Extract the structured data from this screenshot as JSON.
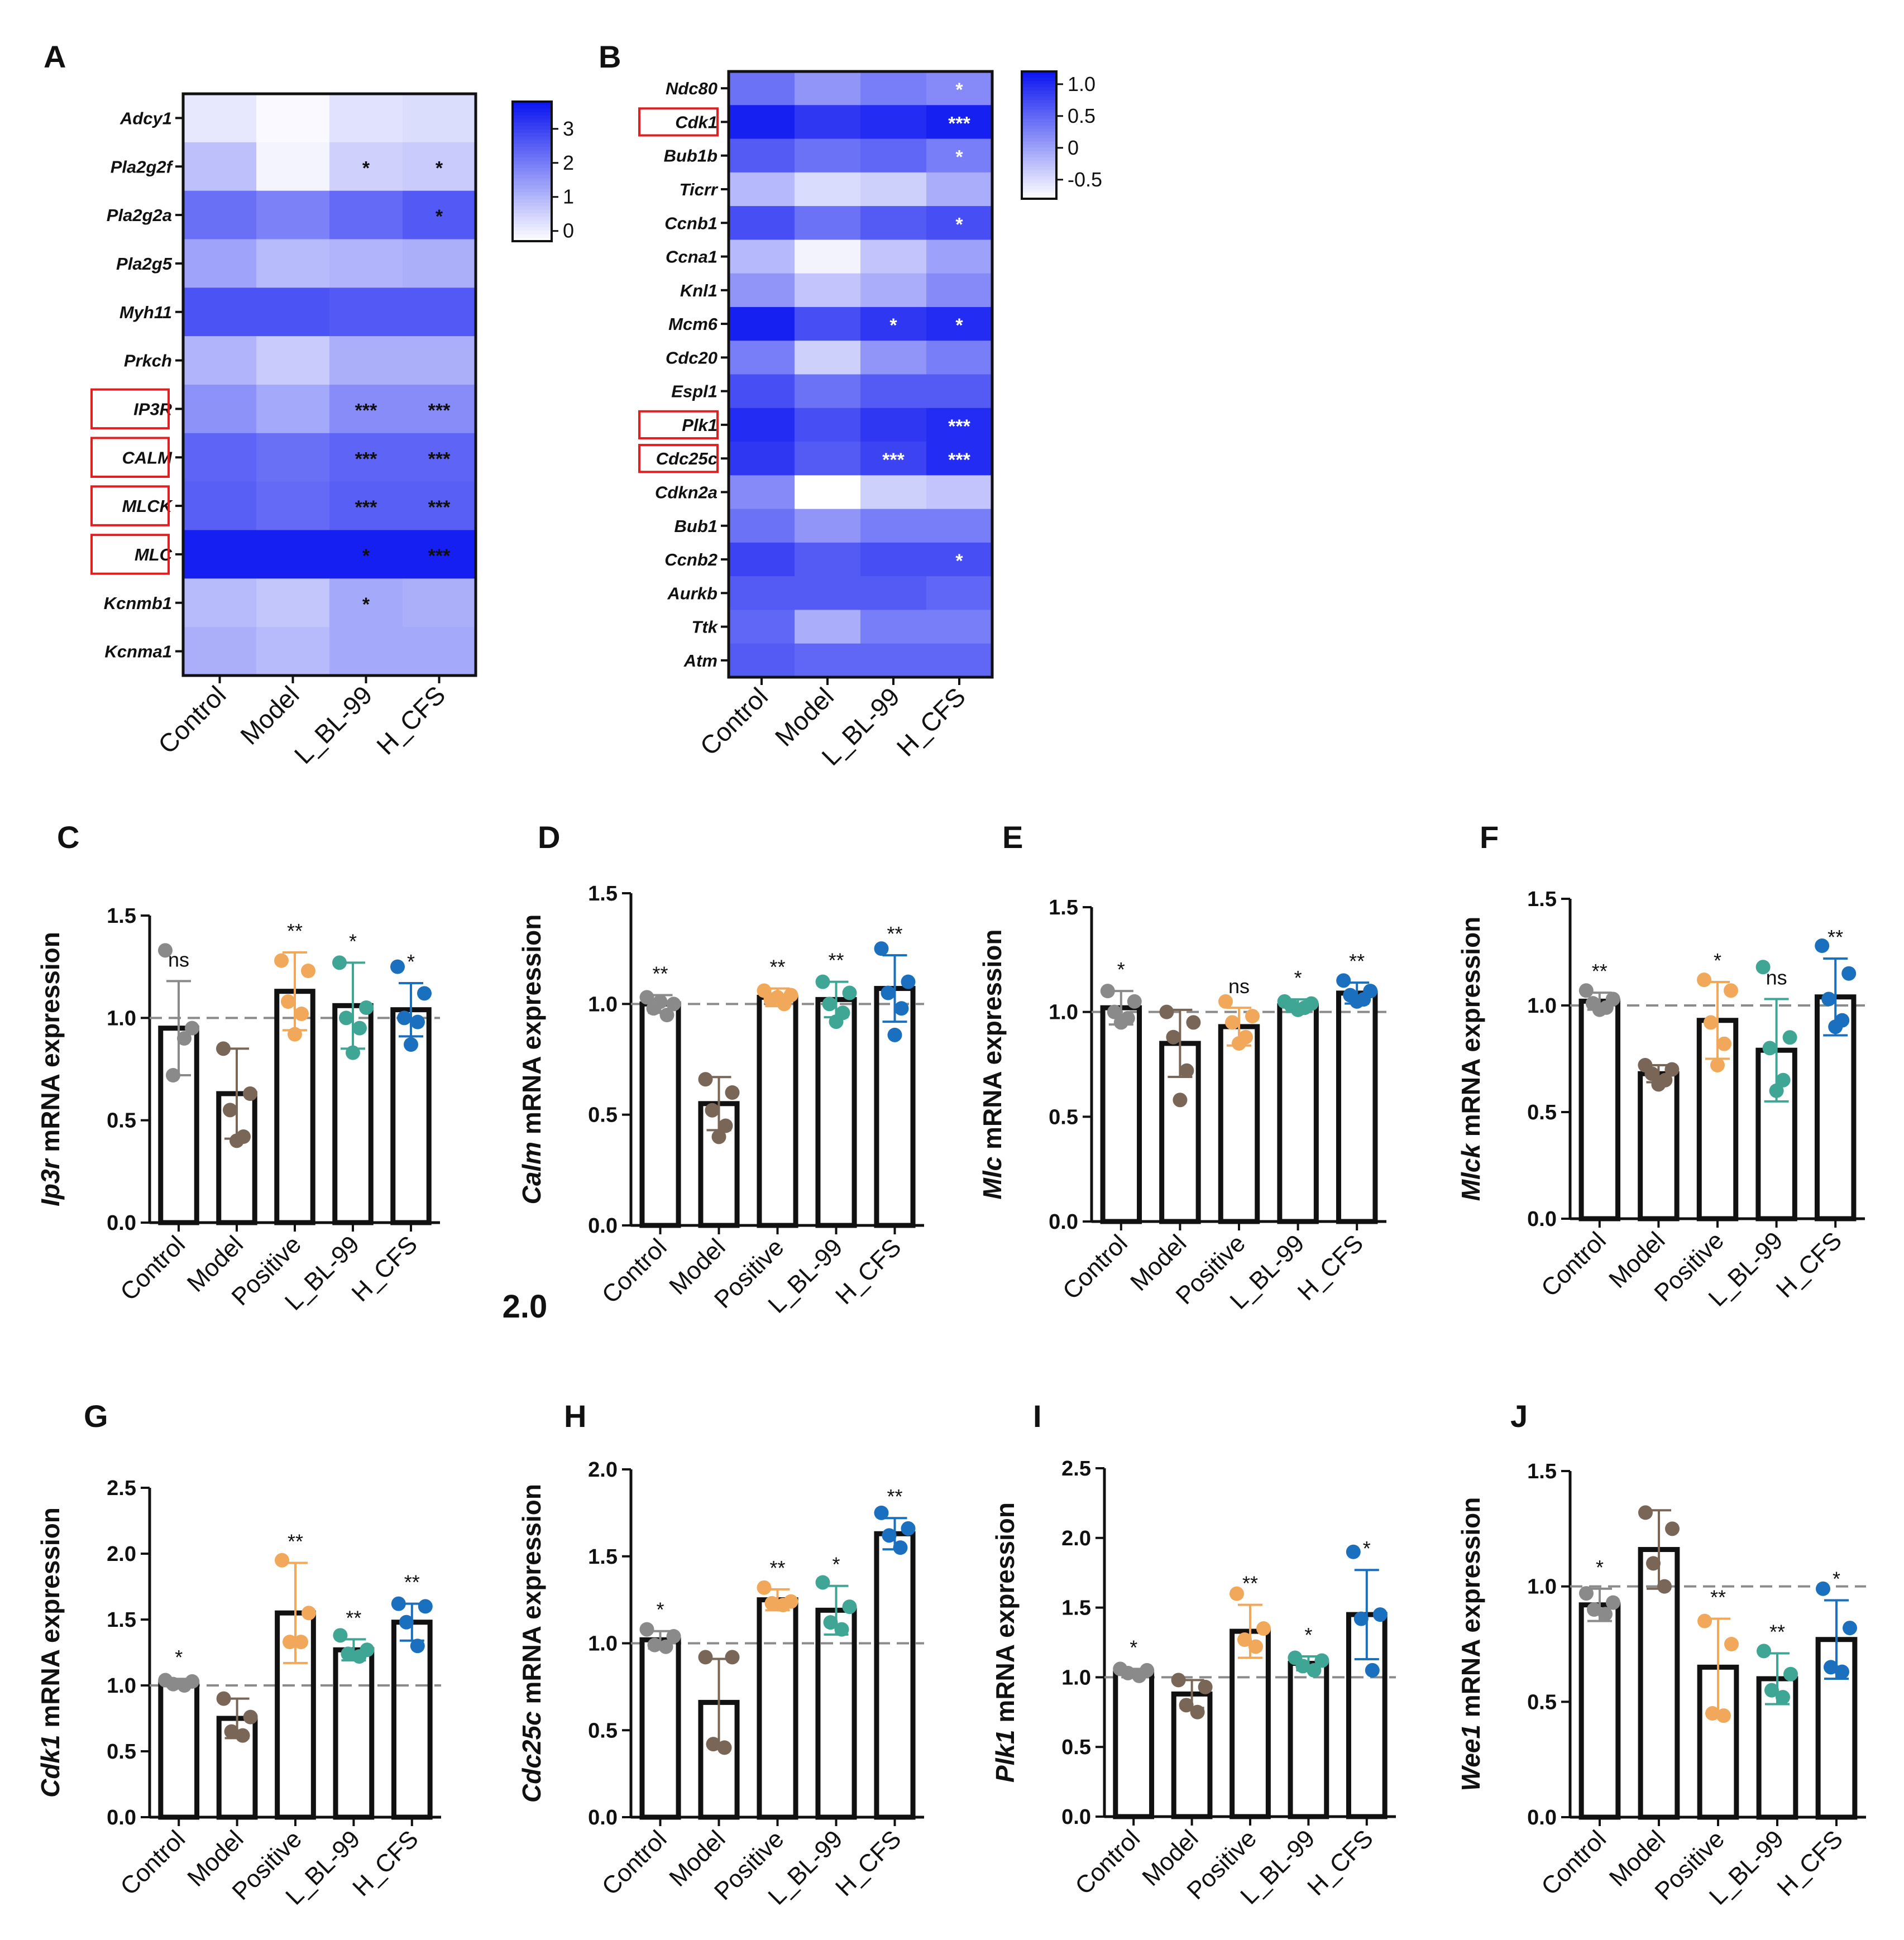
{
  "figure": {
    "stray_text": "2.0",
    "colors": {
      "Control": "#8a8a8a",
      "Model": "#7a6656",
      "Positive": "#f2a85a",
      "L_BL-99": "#3fa594",
      "H_CFS": "#1a6fbe",
      "highlight": "#e02020",
      "heat_max": "#0a14f0"
    }
  },
  "chart_data": [
    {
      "panel": "A",
      "type": "heatmap",
      "columns": [
        "Control",
        "Model",
        "L_BL-99",
        "H_CFS"
      ],
      "rows": [
        "Adcy1",
        "Pla2g2f",
        "Pla2g2a",
        "Pla2g5",
        "Myh11",
        "Prkch",
        "IP3R",
        "CALM",
        "MLCK",
        "MLC",
        "Kcnmb1",
        "Kcnma1"
      ],
      "highlighted_rows": [
        "IP3R",
        "CALM",
        "MLCK",
        "MLC"
      ],
      "values": [
        [
          0.1,
          -0.2,
          0.2,
          0.3
        ],
        [
          0.8,
          -0.1,
          0.5,
          0.6
        ],
        [
          2.2,
          1.9,
          2.3,
          2.6
        ],
        [
          1.3,
          0.9,
          1.0,
          1.1
        ],
        [
          2.7,
          2.7,
          2.6,
          2.6
        ],
        [
          1.0,
          0.6,
          1.1,
          1.1
        ],
        [
          1.6,
          1.2,
          1.7,
          1.7
        ],
        [
          2.4,
          2.2,
          2.4,
          2.4
        ],
        [
          2.5,
          2.3,
          2.5,
          2.5
        ],
        [
          3.6,
          3.6,
          3.6,
          3.6
        ],
        [
          0.9,
          0.7,
          1.2,
          1.1
        ],
        [
          1.1,
          0.9,
          1.2,
          1.2
        ]
      ],
      "stars": [
        [
          "",
          "",
          "",
          ""
        ],
        [
          "",
          "",
          "*",
          "*"
        ],
        [
          "",
          "",
          "",
          "*"
        ],
        [
          "",
          "",
          "",
          ""
        ],
        [
          "",
          "",
          "",
          ""
        ],
        [
          "",
          "",
          "",
          ""
        ],
        [
          "",
          "",
          "***",
          "***"
        ],
        [
          "",
          "",
          "***",
          "***"
        ],
        [
          "",
          "",
          "***",
          "***"
        ],
        [
          "",
          "",
          "*",
          "***"
        ],
        [
          "",
          "",
          "*",
          ""
        ],
        [
          "",
          "",
          "",
          ""
        ]
      ],
      "star_color": "#111111",
      "vmin": -0.3,
      "vmax": 3.8,
      "colorbar_ticks": [
        "3",
        "2",
        "1",
        "0"
      ],
      "colorbar_tick_values": [
        3,
        2,
        1,
        0
      ]
    },
    {
      "panel": "B",
      "type": "heatmap",
      "columns": [
        "Control",
        "Model",
        "L_BL-99",
        "H_CFS"
      ],
      "rows": [
        "Ndc80",
        "Cdk1",
        "Bub1b",
        "Ticrr",
        "Ccnb1",
        "Ccna1",
        "Knl1",
        "Mcm6",
        "Cdc20",
        "Espl1",
        "Plk1",
        "Cdc25c",
        "Cdkn2a",
        "Bub1",
        "Ccnb2",
        "Aurkb",
        "Ttk",
        "Atm"
      ],
      "highlighted_rows": [
        "Cdk1",
        "Plk1",
        "Cdc25c"
      ],
      "values": [
        [
          0.4,
          0.1,
          0.3,
          0.2
        ],
        [
          1.1,
          0.9,
          1.0,
          1.1
        ],
        [
          0.6,
          0.4,
          0.5,
          0.3
        ],
        [
          -0.2,
          -0.5,
          -0.4,
          -0.1
        ],
        [
          0.7,
          0.4,
          0.6,
          0.7
        ],
        [
          -0.2,
          -0.7,
          -0.3,
          0.0
        ],
        [
          0.1,
          -0.3,
          -0.1,
          0.2
        ],
        [
          1.1,
          0.7,
          0.9,
          1.0
        ],
        [
          0.3,
          -0.4,
          0.1,
          0.3
        ],
        [
          0.7,
          0.4,
          0.6,
          0.6
        ],
        [
          1.0,
          0.7,
          0.9,
          1.0
        ],
        [
          0.9,
          0.6,
          0.8,
          1.0
        ],
        [
          0.2,
          -0.9,
          -0.4,
          -0.3
        ],
        [
          0.4,
          0.1,
          0.3,
          0.3
        ],
        [
          0.8,
          0.6,
          0.7,
          0.7
        ],
        [
          0.6,
          0.6,
          0.6,
          0.5
        ],
        [
          0.5,
          -0.1,
          0.3,
          0.3
        ],
        [
          0.6,
          0.5,
          0.5,
          0.5
        ]
      ],
      "stars": [
        [
          "",
          "",
          "",
          "*"
        ],
        [
          "",
          "",
          "",
          "***"
        ],
        [
          "",
          "",
          "",
          "*"
        ],
        [
          "",
          "",
          "",
          ""
        ],
        [
          "",
          "",
          "",
          "*"
        ],
        [
          "",
          "",
          "",
          ""
        ],
        [
          "",
          "",
          "",
          ""
        ],
        [
          "",
          "",
          "*",
          "*"
        ],
        [
          "",
          "",
          "",
          ""
        ],
        [
          "",
          "",
          "",
          ""
        ],
        [
          "",
          "",
          "",
          "***"
        ],
        [
          "",
          "",
          "***",
          "***"
        ],
        [
          "",
          "",
          "",
          ""
        ],
        [
          "",
          "",
          "",
          ""
        ],
        [
          "",
          "",
          "",
          "*"
        ],
        [
          "",
          "",
          "",
          ""
        ],
        [
          "",
          "",
          "",
          ""
        ],
        [
          "",
          "",
          "",
          ""
        ]
      ],
      "star_color": "#ffffff",
      "vmin": -0.8,
      "vmax": 1.2,
      "colorbar_ticks": [
        "1.0",
        "0.5",
        "0",
        "-0.5"
      ],
      "colorbar_tick_values": [
        1.0,
        0.5,
        0,
        -0.5
      ]
    },
    {
      "panel": "C",
      "type": "bar",
      "gene": "Ip3r",
      "ylabel": " mRNA expression",
      "categories": [
        "Control",
        "Model",
        "Positive",
        "L_BL-99",
        "H_CFS"
      ],
      "ylim": [
        0,
        1.5
      ],
      "yticks": [
        "0.0",
        "0.5",
        "1.0",
        "1.5"
      ],
      "ytick_values": [
        0,
        0.5,
        1.0,
        1.5
      ],
      "values": [
        0.95,
        0.63,
        1.13,
        1.06,
        1.04
      ],
      "sd": [
        0.23,
        0.22,
        0.19,
        0.21,
        0.13
      ],
      "points": [
        [
          1.33,
          0.95,
          0.72,
          0.9
        ],
        [
          0.85,
          0.63,
          0.55,
          0.42,
          0.4
        ],
        [
          1.28,
          1.23,
          1.08,
          1.02,
          0.92
        ],
        [
          1.27,
          1.05,
          1.0,
          0.95,
          0.83
        ],
        [
          1.25,
          1.12,
          1.0,
          0.98,
          0.87
        ]
      ],
      "sig": [
        "ns",
        "",
        "**",
        "*",
        "*"
      ]
    },
    {
      "panel": "D",
      "type": "bar",
      "gene": "Calm",
      "ylabel": " mRNA expression",
      "categories": [
        "Control",
        "Model",
        "Positive",
        "L_BL-99",
        "H_CFS"
      ],
      "ylim": [
        0,
        1.5
      ],
      "yticks": [
        "0.0",
        "0.5",
        "1.0",
        "1.5"
      ],
      "ytick_values": [
        0,
        0.5,
        1.0,
        1.5
      ],
      "values": [
        1.0,
        0.55,
        1.03,
        1.02,
        1.07
      ],
      "sd": [
        0.04,
        0.12,
        0.04,
        0.08,
        0.15
      ],
      "points": [
        [
          1.03,
          1.0,
          0.98,
          0.95,
          1.01
        ],
        [
          0.66,
          0.6,
          0.52,
          0.45,
          0.4
        ],
        [
          1.06,
          1.04,
          1.02,
          1.0,
          1.03
        ],
        [
          1.1,
          1.05,
          1.0,
          0.96,
          0.92
        ],
        [
          1.25,
          1.1,
          1.05,
          0.98,
          0.86
        ]
      ],
      "sig": [
        "**",
        "",
        "**",
        "**",
        "**"
      ]
    },
    {
      "panel": "E",
      "type": "bar",
      "gene": "Mlc",
      "ylabel": " mRNA expression",
      "categories": [
        "Control",
        "Model",
        "Positive",
        "L_BL-99",
        "H_CFS"
      ],
      "ylim": [
        0,
        1.5
      ],
      "yticks": [
        "0.0",
        "0.5",
        "1.0",
        "1.5"
      ],
      "ytick_values": [
        0,
        0.5,
        1.0,
        1.5
      ],
      "values": [
        1.02,
        0.85,
        0.93,
        1.03,
        1.09
      ],
      "sd": [
        0.08,
        0.16,
        0.09,
        0.03,
        0.05
      ],
      "points": [
        [
          1.1,
          1.05,
          1.0,
          0.97,
          0.95
        ],
        [
          1.0,
          0.95,
          0.88,
          0.72,
          0.58
        ],
        [
          1.05,
          0.98,
          0.95,
          0.88,
          0.85
        ],
        [
          1.05,
          1.04,
          1.03,
          1.02,
          1.01
        ],
        [
          1.15,
          1.1,
          1.08,
          1.06,
          1.05
        ]
      ],
      "sig": [
        "*",
        "",
        "ns",
        "*",
        "**"
      ]
    },
    {
      "panel": "F",
      "type": "bar",
      "gene": "Mlck",
      "ylabel": " mRNA expression",
      "categories": [
        "Control",
        "Model",
        "Positive",
        "L_BL-99",
        "H_CFS"
      ],
      "ylim": [
        0,
        1.5
      ],
      "yticks": [
        "0.0",
        "0.5",
        "1.0",
        "1.5"
      ],
      "ytick_values": [
        0,
        0.5,
        1.0,
        1.5
      ],
      "values": [
        1.02,
        0.68,
        0.93,
        0.79,
        1.04
      ],
      "sd": [
        0.04,
        0.04,
        0.18,
        0.24,
        0.18
      ],
      "points": [
        [
          1.07,
          1.03,
          1.01,
          0.99,
          0.98
        ],
        [
          0.72,
          0.7,
          0.68,
          0.65,
          0.63
        ],
        [
          1.12,
          1.07,
          0.92,
          0.82,
          0.72
        ],
        [
          1.18,
          0.85,
          0.8,
          0.65,
          0.6
        ],
        [
          1.28,
          1.15,
          1.03,
          0.93,
          0.9
        ]
      ],
      "sig": [
        "**",
        "",
        "*",
        "ns",
        "**"
      ]
    },
    {
      "panel": "G",
      "type": "bar",
      "gene": "Cdk1",
      "ylabel": " mRNA expression",
      "categories": [
        "Control",
        "Model",
        "Positive",
        "L_BL-99",
        "H_CFS"
      ],
      "ylim": [
        0,
        2.5
      ],
      "yticks": [
        "0.0",
        "0.5",
        "1.0",
        "1.5",
        "2.0",
        "2.5"
      ],
      "ytick_values": [
        0,
        0.5,
        1.0,
        1.5,
        2.0,
        2.5
      ],
      "values": [
        1.02,
        0.75,
        1.55,
        1.27,
        1.48
      ],
      "sd": [
        0.03,
        0.15,
        0.38,
        0.08,
        0.14
      ],
      "points": [
        [
          1.04,
          1.03,
          1.01,
          1.0
        ],
        [
          0.9,
          0.76,
          0.65,
          0.62
        ],
        [
          1.95,
          1.55,
          1.33,
          1.33
        ],
        [
          1.38,
          1.27,
          1.24,
          1.22
        ],
        [
          1.62,
          1.6,
          1.48,
          1.3
        ]
      ],
      "sig": [
        "*",
        "",
        "**",
        "**",
        "**"
      ]
    },
    {
      "panel": "H",
      "type": "bar",
      "gene": "Cdc25c",
      "ylabel": " mRNA expression",
      "categories": [
        "Control",
        "Model",
        "Positive",
        "L_BL-99",
        "H_CFS"
      ],
      "ylim": [
        0,
        2.0
      ],
      "yticks": [
        "0.0",
        "0.5",
        "1.0",
        "1.5",
        "2.0"
      ],
      "ytick_values": [
        0,
        0.5,
        1.0,
        1.5,
        2.0
      ],
      "values": [
        1.02,
        0.66,
        1.25,
        1.19,
        1.63
      ],
      "sd": [
        0.05,
        0.25,
        0.06,
        0.14,
        0.09
      ],
      "points": [
        [
          1.08,
          1.04,
          0.99,
          0.98
        ],
        [
          0.92,
          0.92,
          0.42,
          0.4
        ],
        [
          1.32,
          1.24,
          1.23,
          1.22
        ],
        [
          1.35,
          1.21,
          1.12,
          1.08
        ],
        [
          1.75,
          1.66,
          1.62,
          1.55
        ]
      ],
      "sig": [
        "*",
        "",
        "**",
        "*",
        "**"
      ]
    },
    {
      "panel": "I",
      "type": "bar",
      "gene": "Plk1",
      "ylabel": " mRNA expression",
      "categories": [
        "Control",
        "Model",
        "Positive",
        "L_BL-99",
        "H_CFS"
      ],
      "ylim": [
        0,
        2.5
      ],
      "yticks": [
        "0.0",
        "0.5",
        "1.0",
        "1.5",
        "2.0",
        "2.5"
      ],
      "ytick_values": [
        0,
        0.5,
        1.0,
        1.5,
        2.0,
        2.5
      ],
      "values": [
        1.03,
        0.88,
        1.33,
        1.1,
        1.45
      ],
      "sd": [
        0.03,
        0.1,
        0.19,
        0.05,
        0.32
      ],
      "points": [
        [
          1.06,
          1.05,
          1.03,
          1.01
        ],
        [
          0.98,
          0.93,
          0.8,
          0.75
        ],
        [
          1.6,
          1.35,
          1.27,
          1.22
        ],
        [
          1.14,
          1.12,
          1.08,
          1.05
        ],
        [
          1.9,
          1.45,
          1.42,
          1.05
        ]
      ],
      "sig": [
        "*",
        "",
        "**",
        "*",
        "*"
      ]
    },
    {
      "panel": "J",
      "type": "bar",
      "gene": "Wee1",
      "ylabel": " mRNA expression",
      "categories": [
        "Control",
        "Model",
        "Positive",
        "L_BL-99",
        "H_CFS"
      ],
      "ylim": [
        0,
        1.5
      ],
      "yticks": [
        "0.0",
        "0.5",
        "1.0",
        "1.5"
      ],
      "ytick_values": [
        0,
        0.5,
        1.0,
        1.5
      ],
      "values": [
        0.92,
        1.16,
        0.65,
        0.6,
        0.77
      ],
      "sd": [
        0.07,
        0.17,
        0.21,
        0.11,
        0.17
      ],
      "points": [
        [
          0.97,
          0.93,
          0.9,
          0.88
        ],
        [
          1.32,
          1.25,
          1.1,
          1.0
        ],
        [
          0.85,
          0.75,
          0.45,
          0.44
        ],
        [
          0.72,
          0.62,
          0.55,
          0.52
        ],
        [
          0.99,
          0.82,
          0.65,
          0.63
        ]
      ],
      "sig": [
        "*",
        "",
        "**",
        "**",
        "*"
      ]
    }
  ]
}
